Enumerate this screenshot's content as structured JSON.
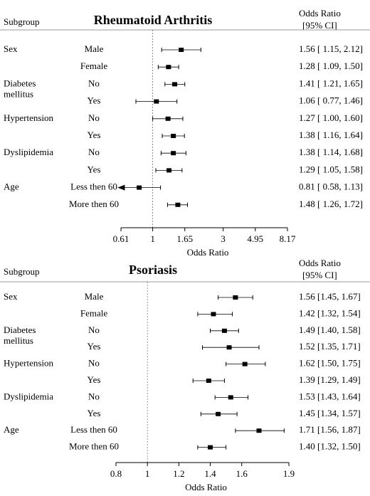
{
  "chart_data": [
    {
      "type": "forest",
      "title": "Rheumatoid Arthritis",
      "subgroup_header": "Subgroup",
      "or_header": "Odds Ratio",
      "ci_header": "[95% CI]",
      "xlabel": "Odds Ratio",
      "log_scale": true,
      "xlim": [
        0.61,
        8.17
      ],
      "xticks": [
        0.61,
        1,
        1.65,
        3,
        4.95,
        8.17
      ],
      "reference": 1,
      "color": "#000000",
      "groups": [
        {
          "name": [
            "Sex"
          ],
          "rows": [
            {
              "label": "Male",
              "value": 1.56,
              "low": 1.15,
              "high": 2.12,
              "value_label": "1.56 [ 1.15, 2.12]"
            },
            {
              "label": "Female",
              "value": 1.28,
              "low": 1.09,
              "high": 1.5,
              "value_label": "1.28 [ 1.09, 1.50]"
            }
          ]
        },
        {
          "name": [
            "Diabetes",
            "mellitus"
          ],
          "rows": [
            {
              "label": "No",
              "value": 1.41,
              "low": 1.21,
              "high": 1.65,
              "value_label": "1.41 [ 1.21, 1.65]"
            },
            {
              "label": "Yes",
              "value": 1.06,
              "low": 0.77,
              "high": 1.46,
              "value_label": "1.06 [ 0.77, 1.46]"
            }
          ]
        },
        {
          "name": [
            "Hypertension"
          ],
          "rows": [
            {
              "label": "No",
              "value": 1.27,
              "low": 1.0,
              "high": 1.6,
              "value_label": "1.27 [ 1.00, 1.60]"
            },
            {
              "label": "Yes",
              "value": 1.38,
              "low": 1.16,
              "high": 1.64,
              "value_label": "1.38 [ 1.16, 1.64]"
            }
          ]
        },
        {
          "name": [
            "Dyslipidemia"
          ],
          "rows": [
            {
              "label": "No",
              "value": 1.38,
              "low": 1.14,
              "high": 1.68,
              "value_label": "1.38 [ 1.14, 1.68]"
            },
            {
              "label": "Yes",
              "value": 1.29,
              "low": 1.05,
              "high": 1.58,
              "value_label": "1.29 [ 1.05, 1.58]"
            }
          ]
        },
        {
          "name": [
            "Age"
          ],
          "rows": [
            {
              "label": "Less then 60",
              "value": 0.81,
              "low": 0.58,
              "high": 1.13,
              "value_label": "0.81 [ 0.58, 1.13]"
            },
            {
              "label": "More then 60",
              "value": 1.48,
              "low": 1.26,
              "high": 1.72,
              "value_label": "1.48 [ 1.26, 1.72]"
            }
          ]
        }
      ]
    },
    {
      "type": "forest",
      "title": "Psoriasis",
      "subgroup_header": "Subgroup",
      "or_header": "Odds Ratio",
      "ci_header": "[95% CI]",
      "xlabel": "Odds Ratio",
      "log_scale": false,
      "xlim": [
        0.8,
        1.9
      ],
      "xticks": [
        0.8,
        1,
        1.2,
        1.4,
        1.6,
        1.9
      ],
      "reference": 1,
      "color": "#000000",
      "groups": [
        {
          "name": [
            "Sex"
          ],
          "rows": [
            {
              "label": "Male",
              "value": 1.56,
              "low": 1.45,
              "high": 1.67,
              "value_label": "1.56 [1.45, 1.67]"
            },
            {
              "label": "Female",
              "value": 1.42,
              "low": 1.32,
              "high": 1.54,
              "value_label": "1.42 [1.32, 1.54]"
            }
          ]
        },
        {
          "name": [
            "Diabetes",
            "mellitus"
          ],
          "rows": [
            {
              "label": "No",
              "value": 1.49,
              "low": 1.4,
              "high": 1.58,
              "value_label": "1.49 [1.40, 1.58]"
            },
            {
              "label": "Yes",
              "value": 1.52,
              "low": 1.35,
              "high": 1.71,
              "value_label": "1.52 [1.35, 1.71]"
            }
          ]
        },
        {
          "name": [
            "Hypertension"
          ],
          "rows": [
            {
              "label": "No",
              "value": 1.62,
              "low": 1.5,
              "high": 1.75,
              "value_label": "1.62 [1.50, 1.75]"
            },
            {
              "label": "Yes",
              "value": 1.39,
              "low": 1.29,
              "high": 1.49,
              "value_label": "1.39 [1.29, 1.49]"
            }
          ]
        },
        {
          "name": [
            "Dyslipidemia"
          ],
          "rows": [
            {
              "label": "No",
              "value": 1.53,
              "low": 1.43,
              "high": 1.64,
              "value_label": "1.53 [1.43, 1.64]"
            },
            {
              "label": "Yes",
              "value": 1.45,
              "low": 1.34,
              "high": 1.57,
              "value_label": "1.45 [1.34, 1.57]"
            }
          ]
        },
        {
          "name": [
            "Age"
          ],
          "rows": [
            {
              "label": "Less then 60",
              "value": 1.71,
              "low": 1.56,
              "high": 1.87,
              "value_label": "1.71 [1.56, 1.87]"
            },
            {
              "label": "More then 60",
              "value": 1.4,
              "low": 1.32,
              "high": 1.5,
              "value_label": "1.40 [1.32, 1.50]"
            }
          ]
        }
      ]
    }
  ]
}
